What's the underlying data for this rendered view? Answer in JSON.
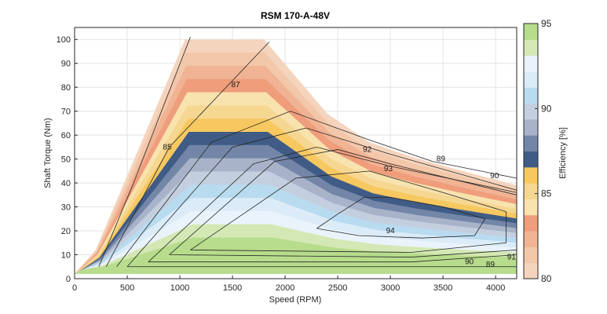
{
  "chart_data": {
    "type": "contour",
    "title": "RSM 170-A-48V",
    "xlabel": "Speed (RPM)",
    "ylabel": "Shaft Torque (Nm)",
    "xlim": [
      0,
      4200
    ],
    "ylim": [
      0,
      105
    ],
    "xticks": [
      0,
      500,
      1000,
      1500,
      2000,
      2500,
      3000,
      3500,
      4000
    ],
    "yticks": [
      0,
      10,
      20,
      30,
      40,
      50,
      60,
      70,
      80,
      90,
      100
    ],
    "grid": true,
    "max_torque_curve": [
      [
        0,
        2
      ],
      [
        200,
        12
      ],
      [
        1050,
        100
      ],
      [
        1800,
        100
      ],
      [
        2400,
        69
      ],
      [
        2800,
        57
      ],
      [
        3200,
        51
      ],
      [
        3600,
        46
      ],
      [
        4200,
        39
      ]
    ],
    "contour_levels": [
      80,
      81,
      82,
      83,
      84,
      85,
      86,
      87,
      88,
      89,
      90,
      91,
      92,
      93,
      94
    ],
    "contours": [
      {
        "level": 85,
        "points": [
          [
            230,
            5
          ],
          [
            560,
            40
          ],
          [
            1100,
            101
          ]
        ]
      },
      {
        "level": 87,
        "points": [
          [
            300,
            5
          ],
          [
            900,
            55
          ],
          [
            1850,
            99
          ]
        ]
      },
      {
        "level": 89,
        "points": [
          [
            400,
            5
          ],
          [
            1300,
            57
          ],
          [
            2050,
            70
          ],
          [
            2800,
            58
          ],
          [
            3400,
            49
          ],
          [
            4200,
            42
          ]
        ]
      },
      {
        "level": 90,
        "points": [
          [
            500,
            5
          ],
          [
            1500,
            55
          ],
          [
            2200,
            63
          ],
          [
            3000,
            52
          ],
          [
            4200,
            37
          ],
          [
            4200,
            5
          ],
          [
            2800,
            5
          ],
          [
            500,
            5
          ]
        ]
      },
      {
        "level": 91,
        "points": [
          [
            700,
            7
          ],
          [
            1700,
            48
          ],
          [
            2300,
            55
          ],
          [
            3000,
            47
          ],
          [
            4200,
            36
          ],
          [
            4200,
            10
          ],
          [
            3200,
            7
          ],
          [
            700,
            7
          ]
        ]
      },
      {
        "level": 92,
        "points": [
          [
            900,
            10
          ],
          [
            1900,
            49
          ],
          [
            2500,
            54
          ],
          [
            3000,
            48
          ],
          [
            4200,
            35
          ],
          [
            4200,
            12
          ],
          [
            3200,
            9
          ],
          [
            900,
            10
          ]
        ]
      },
      {
        "level": 93,
        "points": [
          [
            1100,
            12
          ],
          [
            2100,
            42
          ],
          [
            2800,
            45
          ],
          [
            3500,
            36
          ],
          [
            4100,
            28
          ],
          [
            4100,
            15
          ],
          [
            3200,
            11
          ],
          [
            1100,
            12
          ]
        ]
      },
      {
        "level": 94,
        "points": [
          [
            2300,
            21
          ],
          [
            2500,
            27
          ],
          [
            2750,
            34
          ],
          [
            3000,
            34
          ],
          [
            3500,
            30
          ],
          [
            3900,
            25
          ],
          [
            3800,
            18
          ],
          [
            3300,
            17
          ],
          [
            2700,
            18
          ],
          [
            2300,
            21
          ]
        ]
      }
    ],
    "contour_labels": [
      {
        "text": "85",
        "x": 880,
        "y": 54
      },
      {
        "text": "87",
        "x": 1530,
        "y": 80
      },
      {
        "text": "89",
        "x": 3480,
        "y": 49
      },
      {
        "text": "90",
        "x": 3990,
        "y": 42
      },
      {
        "text": "92",
        "x": 2780,
        "y": 53
      },
      {
        "text": "93",
        "x": 2980,
        "y": 45
      },
      {
        "text": "94",
        "x": 3000,
        "y": 19
      },
      {
        "text": "90",
        "x": 3750,
        "y": 6
      },
      {
        "text": "89",
        "x": 3950,
        "y": 5
      },
      {
        "text": "91",
        "x": 4150,
        "y": 8
      }
    ],
    "colorbar": {
      "label": "Efficiency [%]",
      "range": [
        80,
        95
      ],
      "ticks": [
        80,
        85,
        90,
        95
      ],
      "colors": [
        "#f5d4be",
        "#f3c7a9",
        "#f0b394",
        "#ef9d7b",
        "#f8e2ad",
        "#f6d792",
        "#f6c85f",
        "#405c86",
        "#7386a8",
        "#a8b3c9",
        "#c3cfdf",
        "#b9dbf0",
        "#dbecf8",
        "#eaf3fb",
        "#d3e8b4",
        "#b7dc8c"
      ]
    }
  }
}
